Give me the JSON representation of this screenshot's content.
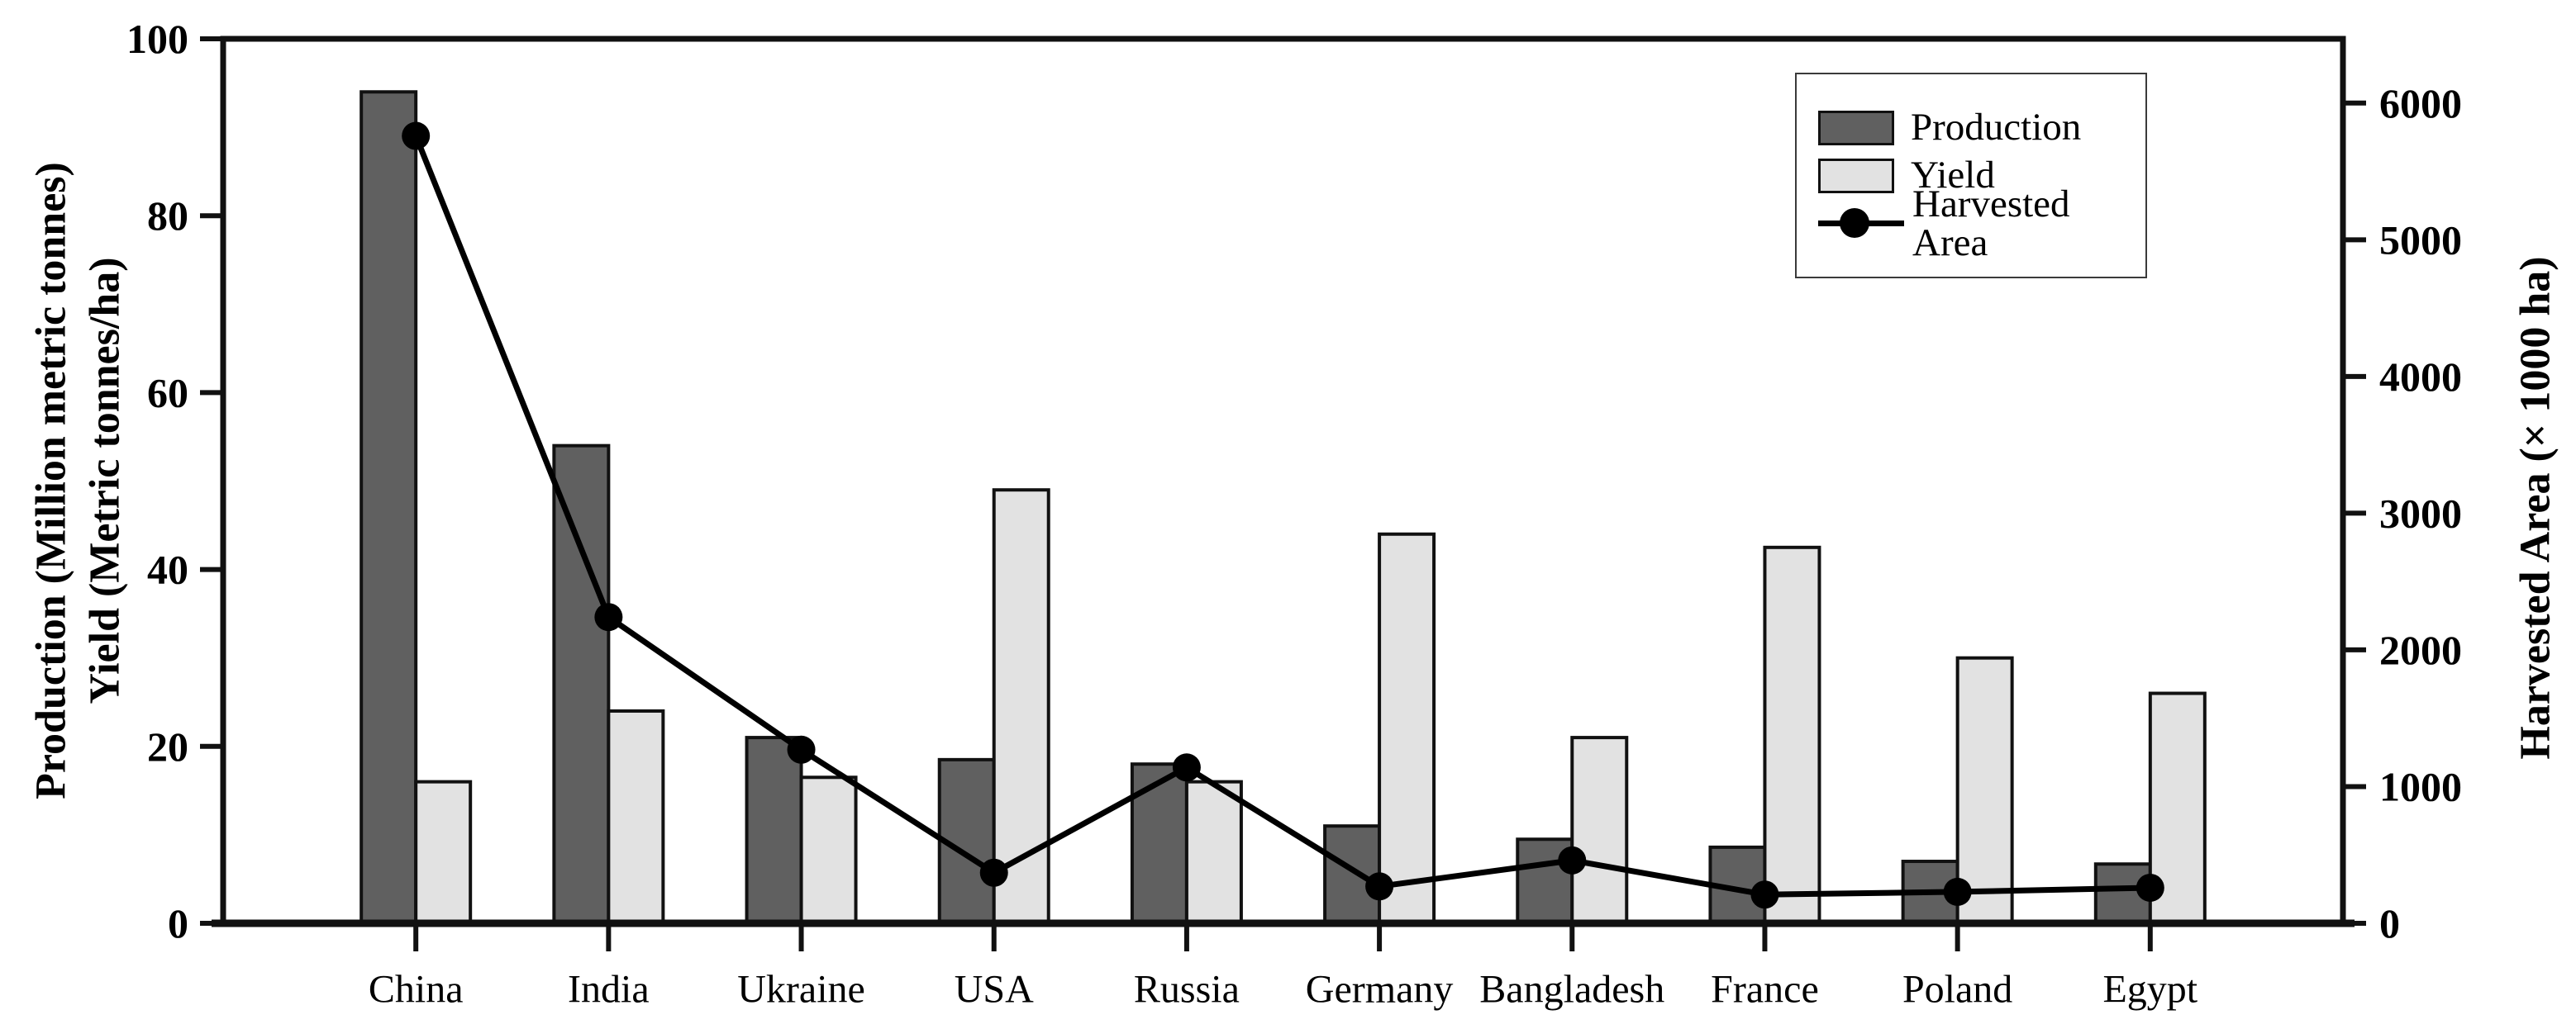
{
  "chart_data": {
    "type": "combo-bar-line",
    "title": "",
    "categories": [
      "China",
      "India",
      "Ukraine",
      "USA",
      "Russia",
      "Germany",
      "Bangladesh",
      "France",
      "Poland",
      "Egypt"
    ],
    "series": [
      {
        "name": "Production",
        "type": "bar",
        "axis": "left",
        "color": "#606060",
        "values": [
          94,
          54,
          21,
          18.5,
          18,
          11,
          9.5,
          8.6,
          7,
          6.7
        ]
      },
      {
        "name": "Yield",
        "type": "bar",
        "axis": "left",
        "color": "#e2e2e2",
        "values": [
          16,
          24,
          16.5,
          49,
          16,
          44,
          21,
          42.5,
          30,
          26
        ]
      },
      {
        "name": "Harvested Area",
        "type": "line",
        "axis": "right",
        "color": "#000000",
        "marker": "circle",
        "values": [
          5760,
          2240,
          1270,
          370,
          1140,
          270,
          460,
          210,
          230,
          260
        ]
      }
    ],
    "left_axis": {
      "label_line1": "Production (Million metric tonnes)",
      "label_line2": "Yield (Metric tonnes/ha)",
      "min": 0,
      "max": 100,
      "ticks": [
        0,
        20,
        40,
        60,
        80,
        100
      ]
    },
    "right_axis": {
      "label": "Harvested Area (× 1000 ha)",
      "min": 0,
      "max": 6470,
      "ticks": [
        0,
        1000,
        2000,
        3000,
        4000,
        5000,
        6000
      ]
    },
    "legend_position": "top-right",
    "grid": false
  },
  "legend": {
    "entries": [
      "Production",
      "Yield",
      "Harvested Area"
    ]
  },
  "style": {
    "bar_dark": "#606060",
    "bar_light": "#e2e2e2",
    "outline": "#111111",
    "line_color": "#000000",
    "background": "#ffffff"
  }
}
